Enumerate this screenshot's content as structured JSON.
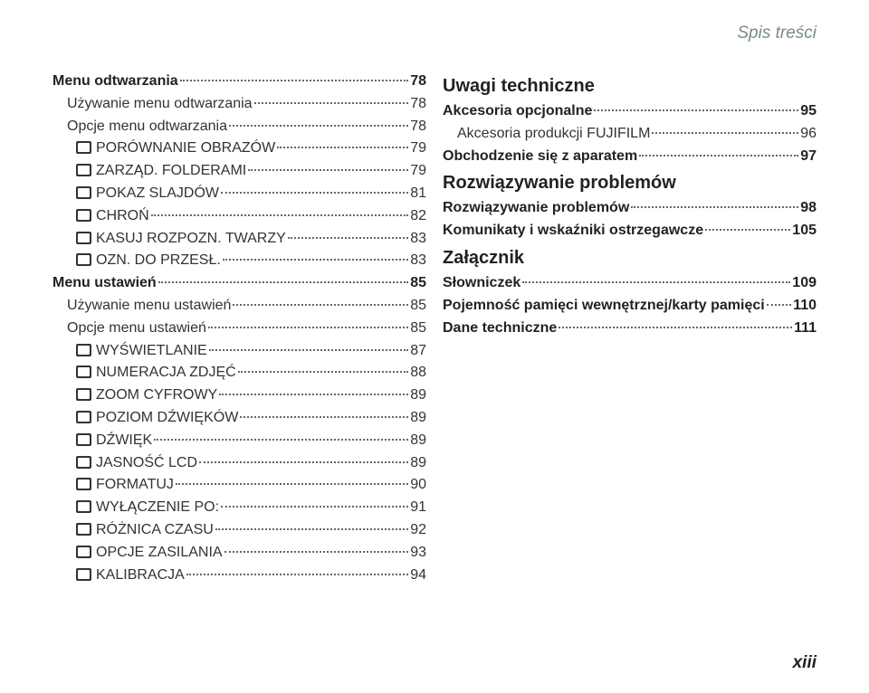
{
  "header": "Spis treści",
  "pageNumber": "xiii",
  "left": [
    {
      "label": "Menu odtwarzania",
      "page": "78",
      "bold": true,
      "indent": 0
    },
    {
      "label": "Używanie menu odtwarzania",
      "page": "78",
      "indent": 1
    },
    {
      "label": "Opcje menu odtwarzania",
      "page": "78",
      "indent": 1
    },
    {
      "label": "PORÓWNANIE OBRAZÓW",
      "page": "79",
      "indent": 2,
      "icon": true
    },
    {
      "label": "ZARZĄD. FOLDERAMI",
      "page": "79",
      "indent": 2,
      "icon": true
    },
    {
      "label": "POKAZ SLAJDÓW",
      "page": "81",
      "indent": 2,
      "icon": true
    },
    {
      "label": "CHROŃ",
      "page": "82",
      "indent": 2,
      "icon": true
    },
    {
      "label": "KASUJ ROZPOZN. TWARZY",
      "page": "83",
      "indent": 2,
      "icon": true
    },
    {
      "label": "OZN. DO PRZESŁ.",
      "page": "83",
      "indent": 2,
      "icon": true
    },
    {
      "label": "Menu ustawień",
      "page": "85",
      "bold": true,
      "indent": 0
    },
    {
      "label": "Używanie menu ustawień",
      "page": "85",
      "indent": 1
    },
    {
      "label": "Opcje menu ustawień",
      "page": "85",
      "indent": 1
    },
    {
      "label": "WYŚWIETLANIE",
      "page": "87",
      "indent": 2,
      "icon": true
    },
    {
      "label": "NUMERACJA ZDJĘĆ",
      "page": "88",
      "indent": 2,
      "icon": true
    },
    {
      "label": "ZOOM CYFROWY",
      "page": "89",
      "indent": 2,
      "icon": true
    },
    {
      "label": "POZIOM DŹWIĘKÓW",
      "page": "89",
      "indent": 2,
      "icon": true
    },
    {
      "label": "DŹWIĘK",
      "page": "89",
      "indent": 2,
      "icon": true
    },
    {
      "label": "JASNOŚĆ LCD",
      "page": "89",
      "indent": 2,
      "icon": true
    },
    {
      "label": "FORMATUJ",
      "page": "90",
      "indent": 2,
      "icon": true
    },
    {
      "label": "WYŁĄCZENIE PO:",
      "page": "91",
      "indent": 2,
      "icon": true
    },
    {
      "label": "RÓŻNICA CZASU",
      "page": "92",
      "indent": 2,
      "icon": true
    },
    {
      "label": "OPCJE ZASILANIA",
      "page": "93",
      "indent": 2,
      "icon": true
    },
    {
      "label": "KALIBRACJA",
      "page": "94",
      "indent": 2,
      "icon": true
    }
  ],
  "right": [
    {
      "label": "Uwagi techniczne",
      "section": true
    },
    {
      "label": "Akcesoria opcjonalne",
      "page": "95",
      "bold": true,
      "indent": 0
    },
    {
      "label": "Akcesoria produkcji FUJIFILM",
      "page": "96",
      "indent": 1
    },
    {
      "label": "Obchodzenie się z aparatem",
      "page": "97",
      "bold": true,
      "indent": 0
    },
    {
      "label": "Rozwiązywanie problemów",
      "section": true
    },
    {
      "label": "Rozwiązywanie problemów",
      "page": "98",
      "bold": true,
      "indent": 0
    },
    {
      "label": "Komunikaty i wskaźniki ostrzegawcze",
      "page": "105",
      "bold": true,
      "indent": 0
    },
    {
      "label": "Załącznik",
      "section": true
    },
    {
      "label": "Słowniczek",
      "page": "109",
      "bold": true,
      "indent": 0
    },
    {
      "label": "Pojemność pamięci wewnętrznej/karty pamięci",
      "page": "110",
      "bold": true,
      "indent": 0
    },
    {
      "label": "Dane techniczne",
      "page": "111",
      "bold": true,
      "indent": 0
    }
  ],
  "style": {
    "text_color": "#333333",
    "muted_color": "#7a8a8f",
    "font_size_body": 16,
    "font_size_section": 20,
    "background": "#ffffff"
  }
}
